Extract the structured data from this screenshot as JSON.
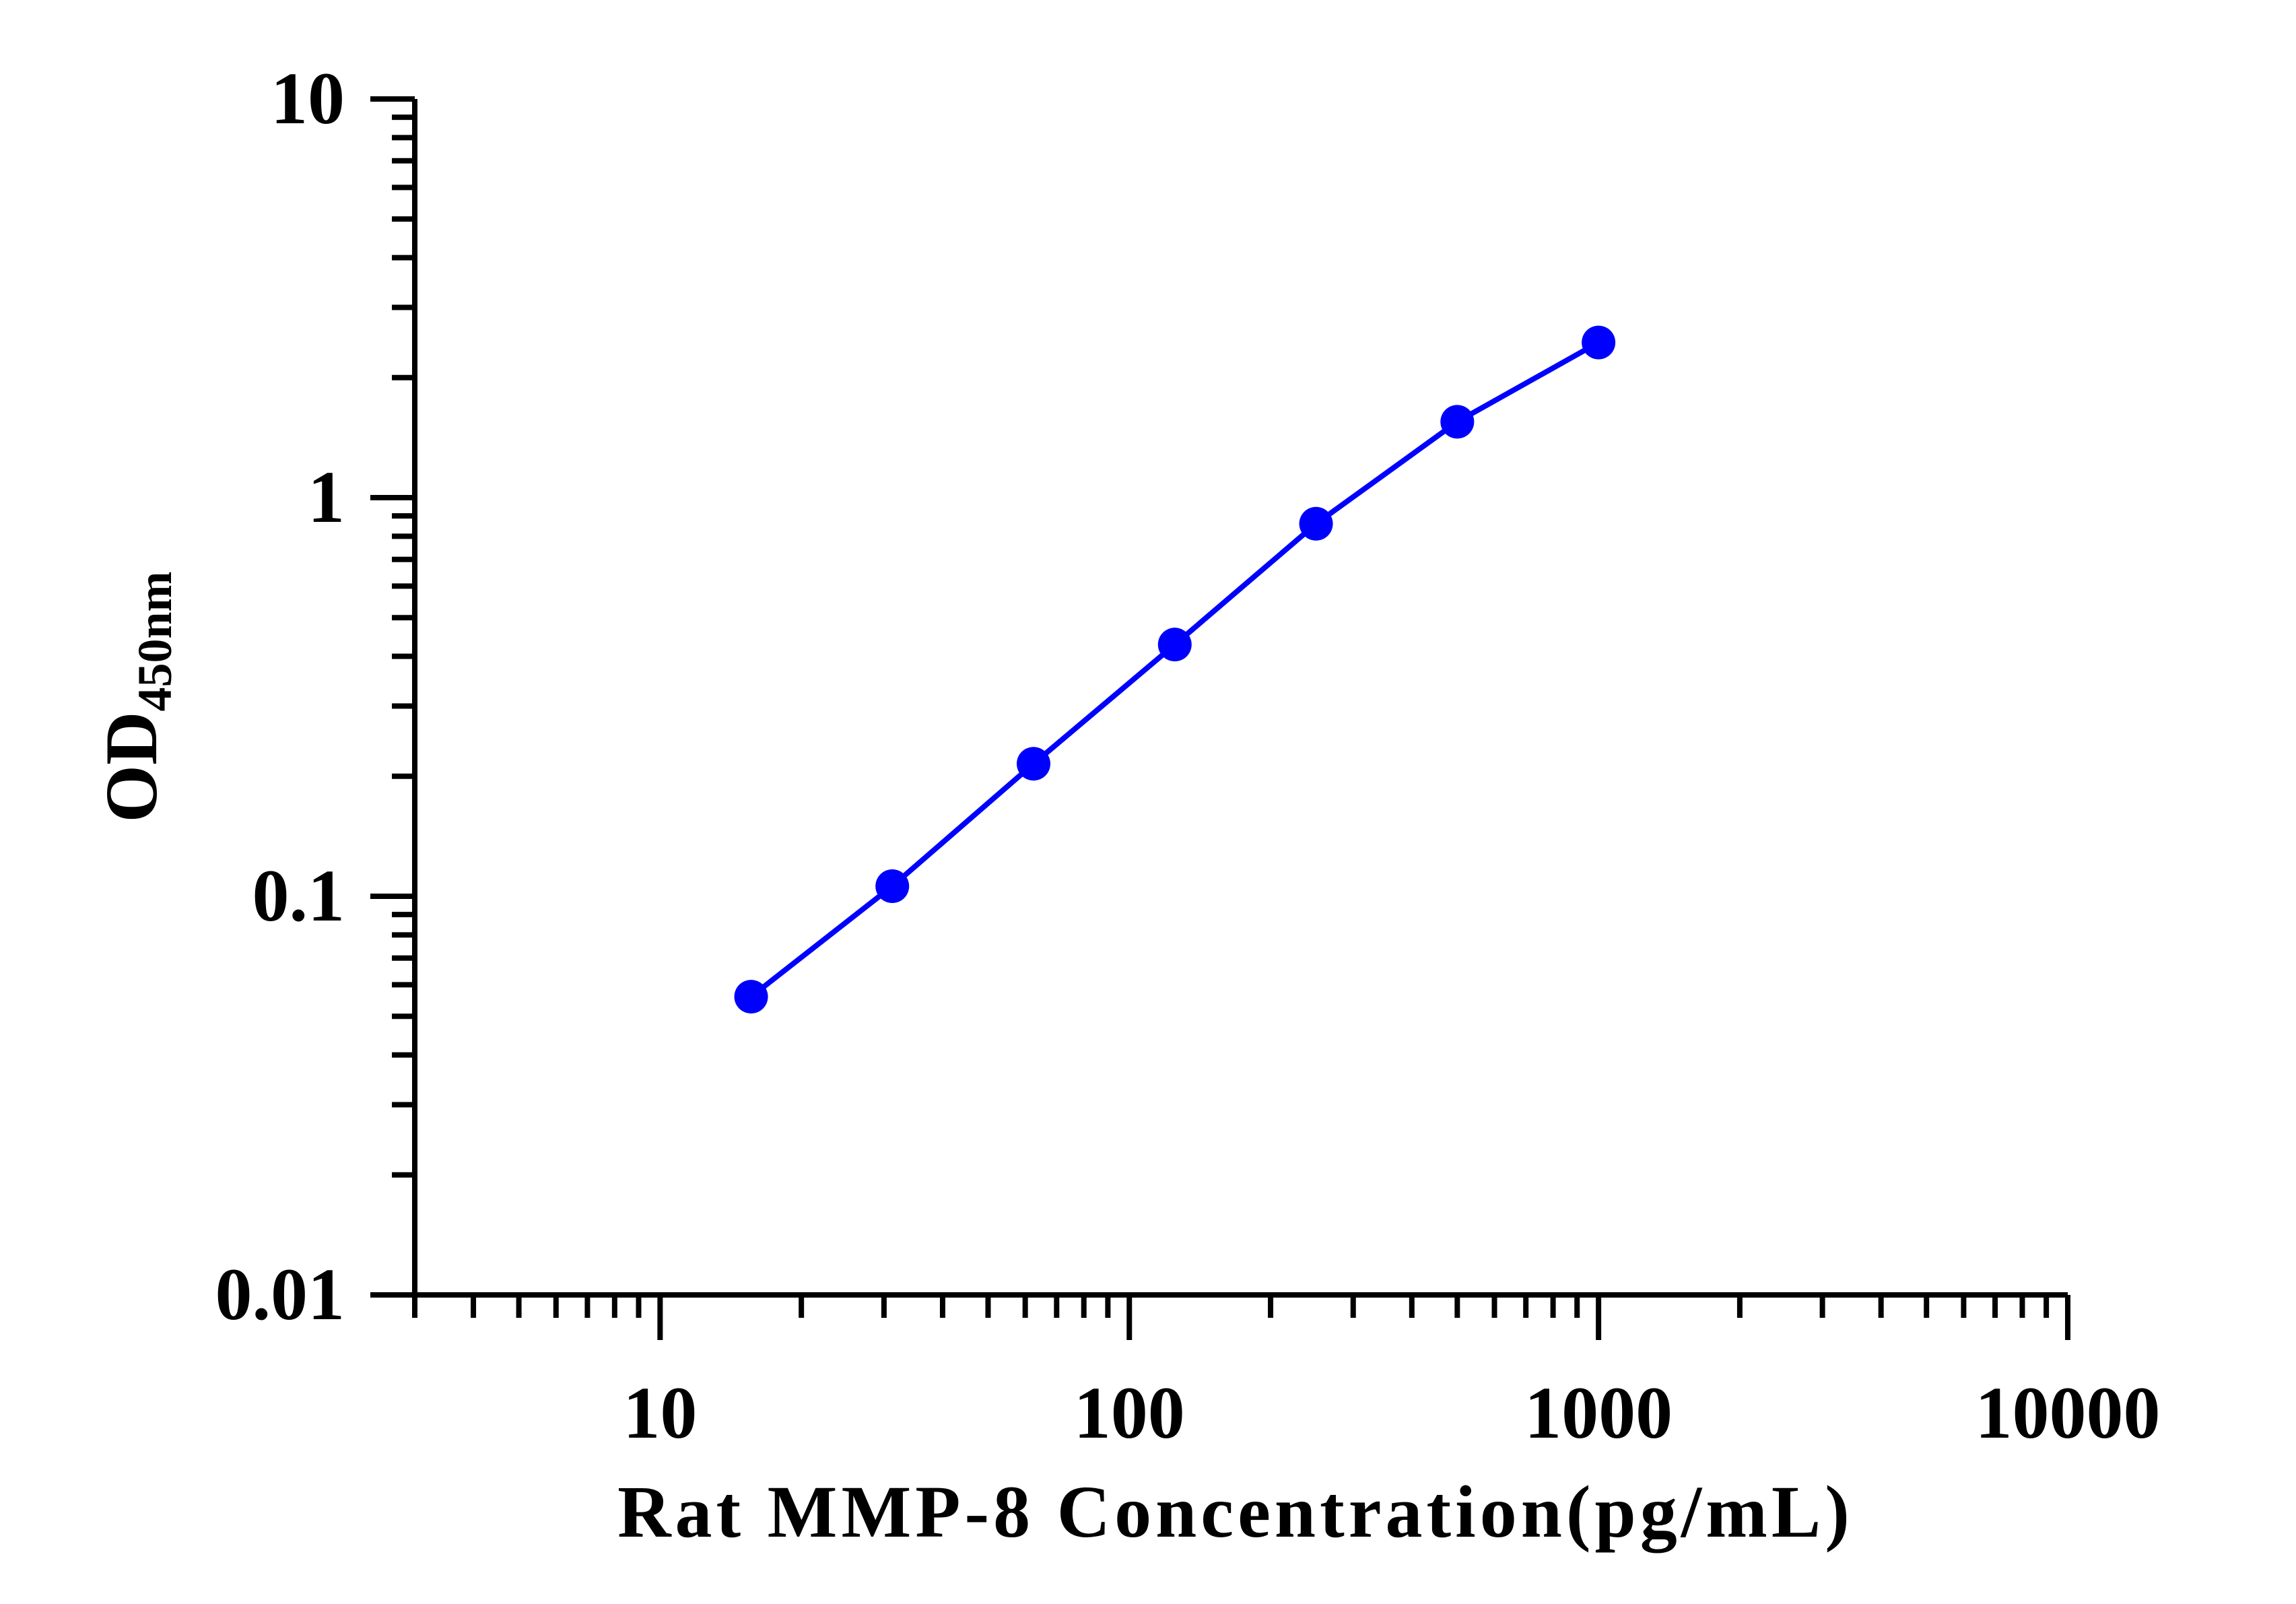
{
  "chart_data": {
    "type": "line",
    "title": "",
    "xlabel": "Rat MMP-8 Concentration(pg/mL)",
    "ylabel": {
      "main": "OD",
      "subscript": "450nm"
    },
    "x_scale": "log",
    "y_scale": "log",
    "xlim": [
      3,
      10000
    ],
    "ylim": [
      0.01,
      10
    ],
    "x_ticks": [
      {
        "value": 10,
        "label": "10"
      },
      {
        "value": 100,
        "label": "100"
      },
      {
        "value": 1000,
        "label": "1000"
      },
      {
        "value": 10000,
        "label": "10000"
      }
    ],
    "y_ticks": [
      {
        "value": 0.01,
        "label": "0.01"
      },
      {
        "value": 0.1,
        "label": "0.1"
      },
      {
        "value": 1,
        "label": "1"
      },
      {
        "value": 10,
        "label": "10"
      }
    ],
    "grid": false,
    "legend": "none",
    "series": [
      {
        "color": "#0000ff",
        "x": [
          15.63,
          31.25,
          62.5,
          125,
          250,
          500,
          1000
        ],
        "y": [
          0.056,
          0.106,
          0.215,
          0.428,
          0.86,
          1.55,
          2.45
        ]
      }
    ]
  }
}
